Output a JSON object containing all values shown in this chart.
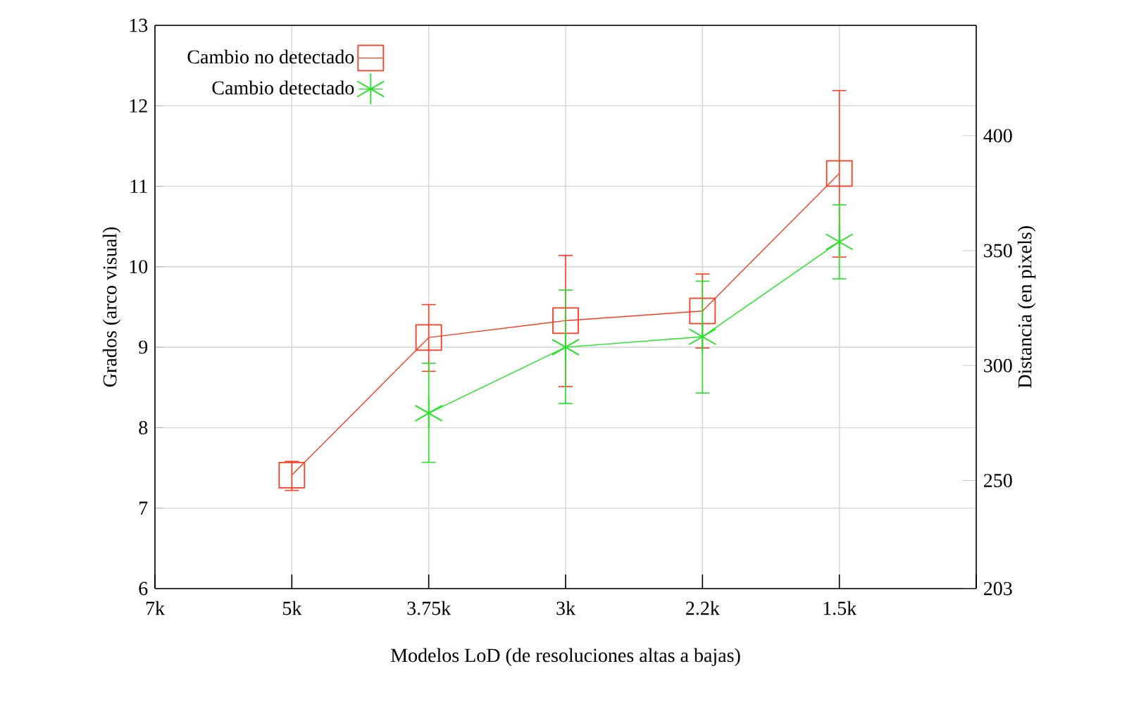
{
  "chart_data": {
    "type": "line",
    "xlabel": "Modelos LoD (de resoluciones altas a bajas)",
    "ylabel": "Grados (arco visual)",
    "y2label": "Distancia (en pixels)",
    "categories": [
      "7k",
      "5k",
      "3.75k",
      "3k",
      "2.2k",
      "1.5k",
      null
    ],
    "ylim": [
      6,
      13
    ],
    "yticks": [
      6,
      7,
      8,
      9,
      10,
      11,
      12,
      13
    ],
    "y2lim": [
      203,
      448
    ],
    "y2ticks": [
      203,
      250,
      300,
      350,
      400
    ],
    "grid": true,
    "legend": "top left",
    "series": [
      {
        "name": "Cambio no detectado",
        "color": "#ff3b1f",
        "marker": "square",
        "values": [
          null,
          7.41,
          9.12,
          9.33,
          9.45,
          11.16,
          null
        ],
        "errors": [
          null,
          [
            7.22,
            7.58
          ],
          [
            8.7,
            9.53
          ],
          [
            8.51,
            10.14
          ],
          [
            8.99,
            9.91
          ],
          [
            10.12,
            12.19
          ],
          null
        ]
      },
      {
        "name": "Cambio detectado",
        "color": "#1fe51f",
        "marker": "cross",
        "values": [
          null,
          null,
          8.18,
          9.0,
          9.13,
          10.31,
          null
        ],
        "errors": [
          null,
          null,
          [
            7.57,
            8.8
          ],
          [
            8.3,
            9.71
          ],
          [
            8.43,
            9.82
          ],
          [
            9.85,
            10.77
          ],
          null
        ]
      }
    ]
  }
}
